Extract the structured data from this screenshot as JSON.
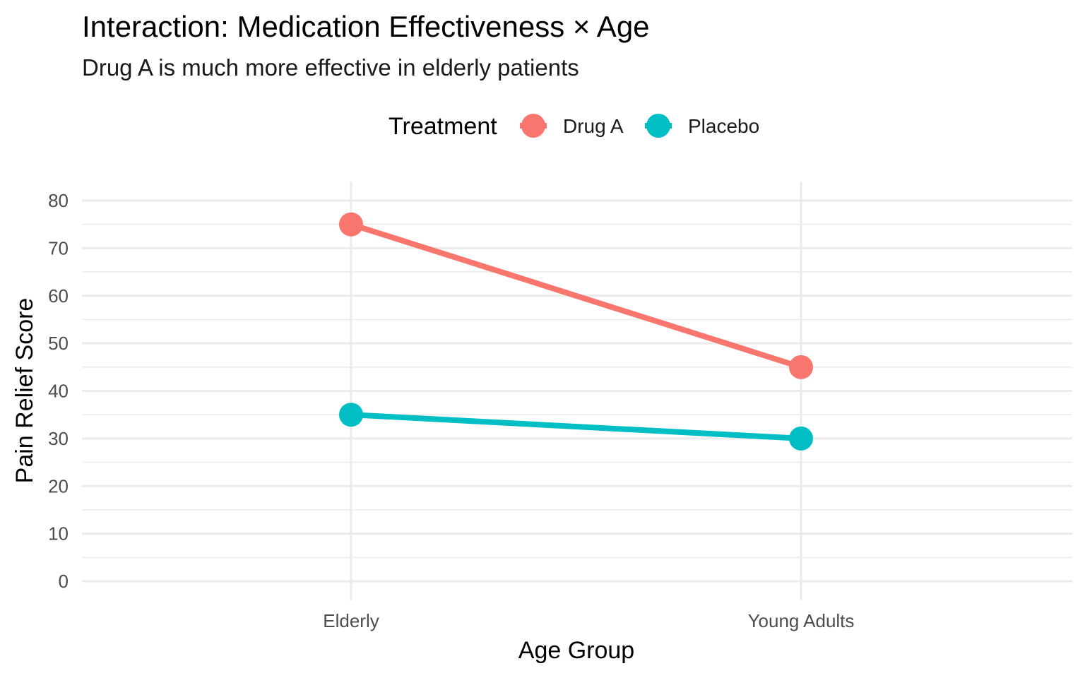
{
  "chart_data": {
    "type": "line",
    "title": "Interaction: Medication Effectiveness × Age",
    "subtitle": "Drug A is much more effective in elderly patients",
    "xlabel": "Age Group",
    "ylabel": "Pain Relief Score",
    "categories": [
      "Elderly",
      "Young Adults"
    ],
    "ylim": [
      0,
      80
    ],
    "yticks": [
      0,
      10,
      20,
      30,
      40,
      50,
      60,
      70,
      80
    ],
    "grid": true,
    "legend": {
      "title": "Treatment",
      "placement": "top"
    },
    "series": [
      {
        "name": "Drug A",
        "values": [
          75,
          45
        ],
        "color": "#F8766D"
      },
      {
        "name": "Placebo",
        "values": [
          35,
          30
        ],
        "color": "#00BFC4"
      }
    ]
  }
}
